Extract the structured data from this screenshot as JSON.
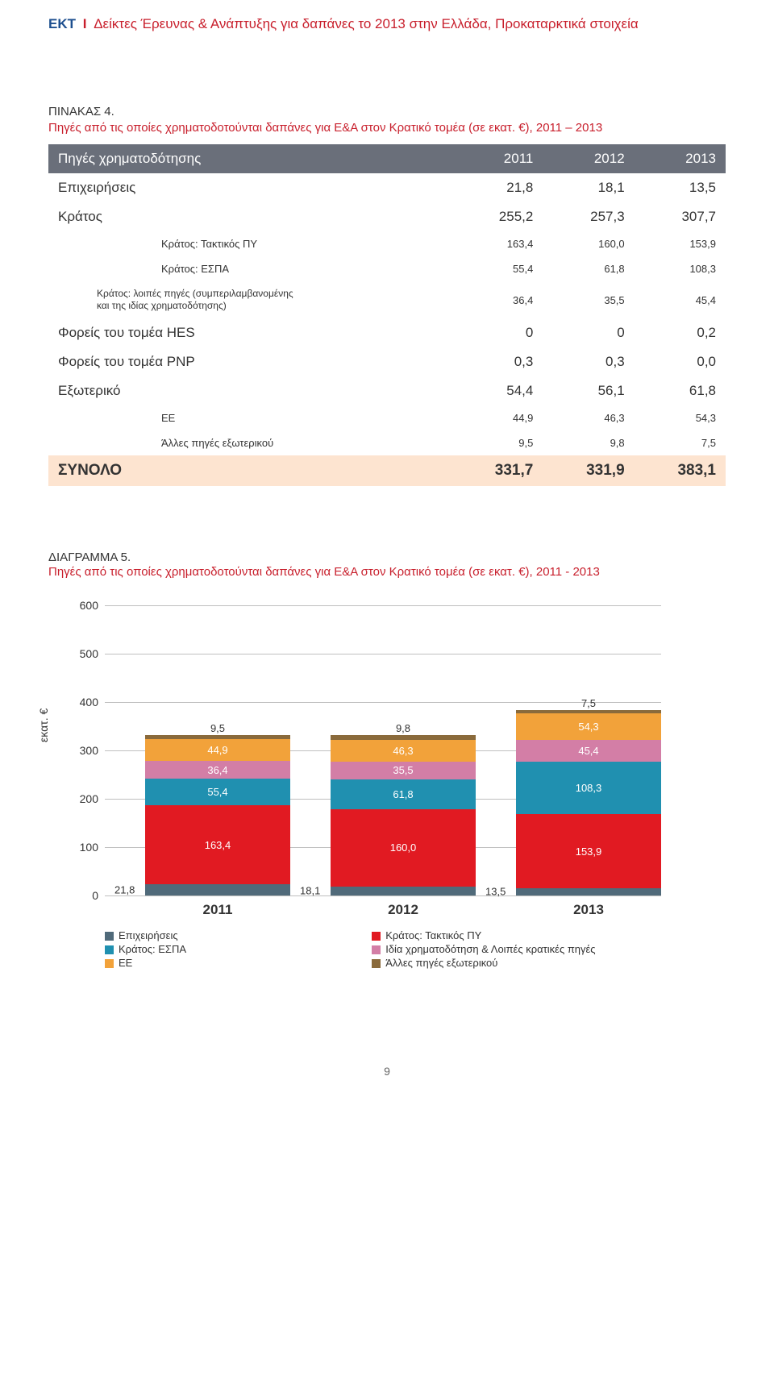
{
  "header": {
    "accent": "ΕΚΤ",
    "divider": "I",
    "rest": "Δείκτες Έρευνας & Ανάπτυξης για δαπάνες το 2013 στην Ελλάδα, Προκαταρκτικά στοιχεία"
  },
  "table": {
    "label": "ΠΙΝΑΚΑΣ 4.",
    "title": "Πηγές από τις οποίες χρηματοδοτούνται δαπάνες για Ε&Α στον Κρατικό τομέα (σε εκατ. €), 2011 – 2013",
    "header_row": [
      "Πηγές χρηματοδότησης",
      "2011",
      "2012",
      "2013"
    ],
    "rows": [
      {
        "cls": "main-row",
        "cells": [
          "Επιχειρήσεις",
          "21,8",
          "18,1",
          "13,5"
        ]
      },
      {
        "cls": "main-row",
        "cells": [
          "Κράτος",
          "255,2",
          "257,3",
          "307,7"
        ]
      },
      {
        "cls": "indent-row",
        "cells": [
          "Κράτος: Τακτικός ΠΥ",
          "163,4",
          "160,0",
          "153,9"
        ]
      },
      {
        "cls": "indent-row",
        "cells": [
          "Κράτος: ΕΣΠΑ",
          "55,4",
          "61,8",
          "108,3"
        ]
      },
      {
        "cls": "double-indent",
        "cells": [
          "Κράτος: λοιπές πηγές (συμπεριλαμβανομένης<br>και της ιδίας χρηματοδότησης)",
          "36,4",
          "35,5",
          "45,4"
        ]
      },
      {
        "cls": "main-row",
        "cells": [
          "Φορείς του τομέα HES",
          "0",
          "0",
          "0,2"
        ]
      },
      {
        "cls": "main-row",
        "cells": [
          "Φορείς του τομέα PNP",
          "0,3",
          "0,3",
          "0,0"
        ]
      },
      {
        "cls": "main-row",
        "cells": [
          "Εξωτερικό",
          "54,4",
          "56,1",
          "61,8"
        ]
      },
      {
        "cls": "indent-row",
        "cells": [
          "ΕΕ",
          "44,9",
          "46,3",
          "54,3"
        ]
      },
      {
        "cls": "indent-row",
        "cells": [
          "Άλλες πηγές εξωτερικού",
          "9,5",
          "9,8",
          "7,5"
        ]
      },
      {
        "cls": "total-row",
        "cells": [
          "ΣΥΝΟΛΟ",
          "331,7",
          "331,9",
          "383,1"
        ]
      }
    ]
  },
  "chart": {
    "label": "ΔΙΑΓΡΑΜΜΑ 5.",
    "title": "Πηγές από τις οποίες χρηματοδοτούνται δαπάνες για Ε&Α στον Κρατικό τομέα (σε εκατ. €), 2011 - 2013",
    "ylabel": "εκατ. €",
    "ymax": 600,
    "yticks": [
      0,
      100,
      200,
      300,
      400,
      500,
      600
    ],
    "categories": [
      "2011",
      "2012",
      "2013"
    ],
    "bar_positions": [
      50,
      280,
      510
    ],
    "stacks": [
      [
        {
          "v": 21.8,
          "label": "21,8",
          "color": "#506a7a",
          "out": "left"
        },
        {
          "v": 163.4,
          "label": "163,4",
          "color": "#e11a22"
        },
        {
          "v": 55.4,
          "label": "55,4",
          "color": "#2090b0"
        },
        {
          "v": 36.4,
          "label": "36,4",
          "color": "#d37ea6"
        },
        {
          "v": 44.9,
          "label": "44,9",
          "color": "#f2a23a"
        },
        {
          "v": 9.5,
          "label": "9,5",
          "color": "#8a6a3b",
          "out": "top"
        }
      ],
      [
        {
          "v": 18.1,
          "label": "18,1",
          "color": "#506a7a",
          "out": "left"
        },
        {
          "v": 160.0,
          "label": "160,0",
          "color": "#e11a22"
        },
        {
          "v": 61.8,
          "label": "61,8",
          "color": "#2090b0"
        },
        {
          "v": 35.5,
          "label": "35,5",
          "color": "#d37ea6"
        },
        {
          "v": 46.3,
          "label": "46,3",
          "color": "#f2a23a"
        },
        {
          "v": 9.8,
          "label": "9,8",
          "color": "#8a6a3b",
          "out": "top"
        }
      ],
      [
        {
          "v": 13.5,
          "label": "13,5",
          "color": "#506a7a",
          "out": "left"
        },
        {
          "v": 153.9,
          "label": "153,9",
          "color": "#e11a22"
        },
        {
          "v": 108.3,
          "label": "108,3",
          "color": "#2090b0"
        },
        {
          "v": 45.4,
          "label": "45,4",
          "color": "#d37ea6"
        },
        {
          "v": 54.3,
          "label": "54,3",
          "color": "#f2a23a"
        },
        {
          "v": 7.5,
          "label": "7,5",
          "color": "#8a6a3b",
          "out": "top"
        }
      ]
    ],
    "legend": [
      {
        "label": "Επιχειρήσεις",
        "color": "#506a7a"
      },
      {
        "label": "Κράτος: Τακτικός ΠΥ",
        "color": "#e11a22"
      },
      {
        "label": "Κράτος: ΕΣΠΑ",
        "color": "#2090b0"
      },
      {
        "label": "Ιδία χρηματοδότηση  & Λοιπές κρατικές πηγές",
        "color": "#d37ea6"
      },
      {
        "label": "ΕΕ",
        "color": "#f2a23a"
      },
      {
        "label": "Άλλες πηγές εξωτερικού",
        "color": "#8a6a3b"
      }
    ]
  },
  "pagenum": "9"
}
